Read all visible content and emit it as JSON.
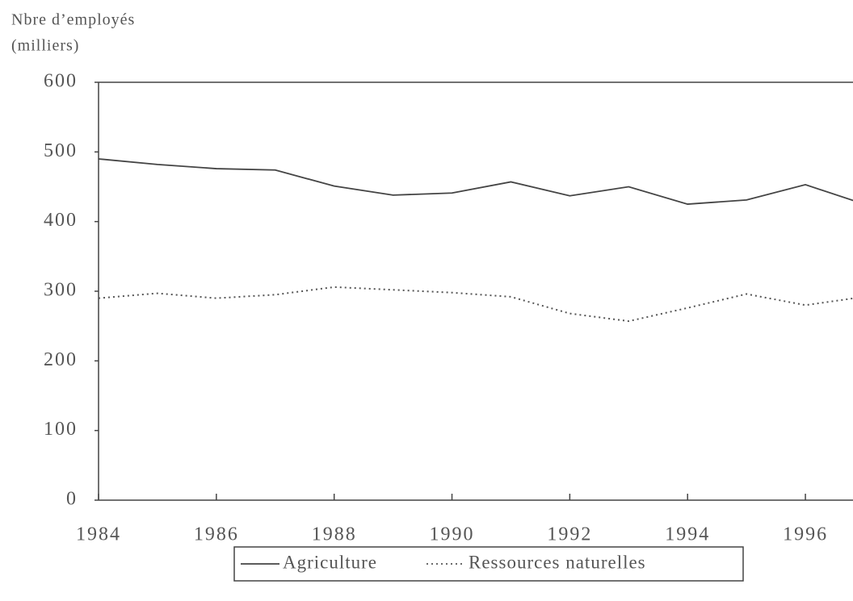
{
  "chart_data": {
    "type": "line",
    "y_label": [
      "Nbre d’employés",
      "(milliers)"
    ],
    "x": [
      1984,
      1985,
      1986,
      1987,
      1988,
      1989,
      1990,
      1991,
      1992,
      1993,
      1994,
      1995,
      1996,
      1997
    ],
    "series": [
      {
        "name": "Agriculture",
        "color": "#444444",
        "dash": "solid",
        "values": [
          490,
          482,
          476,
          474,
          451,
          438,
          441,
          457,
          437,
          450,
          425,
          431,
          453,
          425
        ]
      },
      {
        "name": "Ressources naturelles",
        "color": "#555555",
        "dash": "dotted",
        "values": [
          290,
          297,
          290,
          295,
          306,
          302,
          298,
          292,
          268,
          257,
          276,
          296,
          280,
          292
        ]
      }
    ],
    "xlim": [
      1984,
      1997
    ],
    "xticks": [
      1984,
      1986,
      1988,
      1990,
      1992,
      1994,
      1996
    ],
    "ylim": [
      0,
      600
    ],
    "yticks": [
      0,
      100,
      200,
      300,
      400,
      500,
      600
    ]
  }
}
